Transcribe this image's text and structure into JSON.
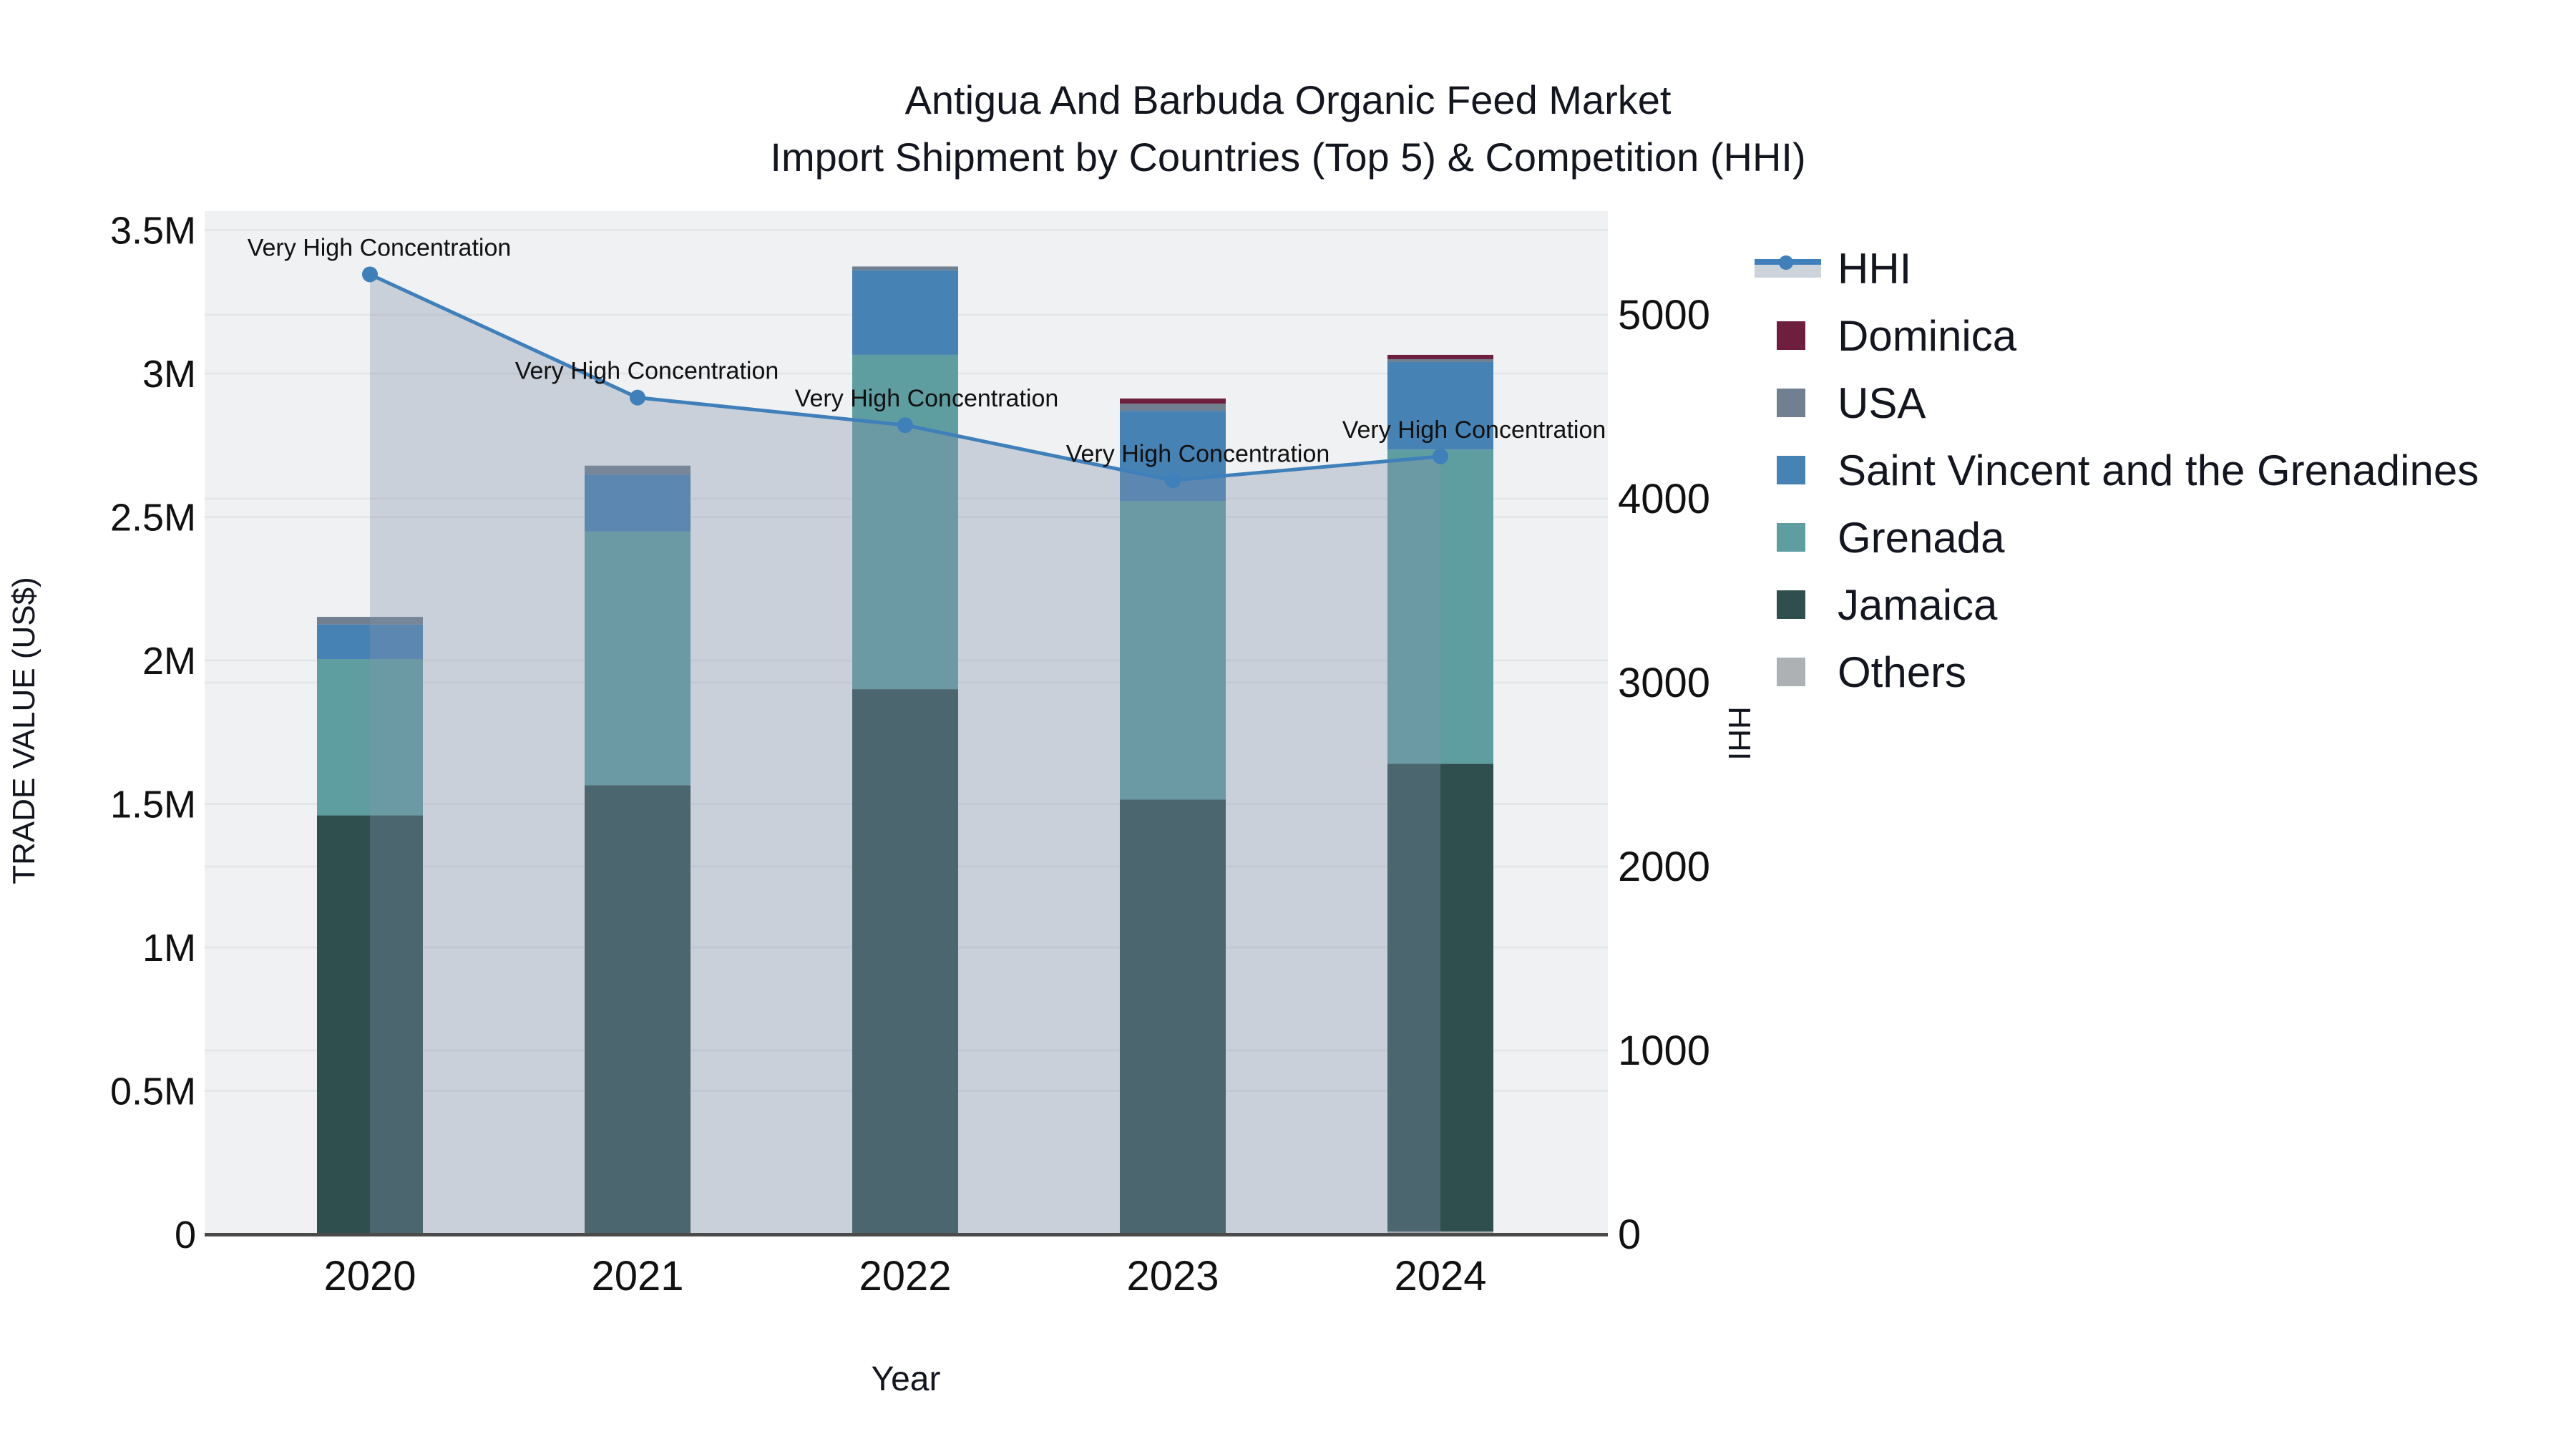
{
  "title": {
    "line1": "Antigua And Barbuda Organic Feed Market",
    "line2": "Import Shipment by Countries (Top 5) & Competition (HHI)"
  },
  "axes": {
    "x": {
      "title": "Year",
      "ticks": [
        "2020",
        "2021",
        "2022",
        "2023",
        "2024"
      ]
    },
    "y_left": {
      "title": "TRADE VALUE (US$)",
      "ticks": [
        {
          "label": "0",
          "value": 0
        },
        {
          "label": "0.5M",
          "value": 500000
        },
        {
          "label": "1M",
          "value": 1000000
        },
        {
          "label": "1.5M",
          "value": 1500000
        },
        {
          "label": "2M",
          "value": 2000000
        },
        {
          "label": "2.5M",
          "value": 2500000
        },
        {
          "label": "3M",
          "value": 3000000
        },
        {
          "label": "3.5M",
          "value": 3500000
        }
      ],
      "range": [
        0,
        3500000
      ]
    },
    "y_right": {
      "title": "HHI",
      "ticks": [
        {
          "label": "0",
          "value": 0
        },
        {
          "label": "1000",
          "value": 1000
        },
        {
          "label": "2000",
          "value": 2000
        },
        {
          "label": "3000",
          "value": 3000
        },
        {
          "label": "4000",
          "value": 4000
        },
        {
          "label": "5000",
          "value": 5000
        }
      ],
      "range": [
        0,
        5565
      ]
    }
  },
  "legend": {
    "items": [
      {
        "label": "HHI",
        "type": "line",
        "color": "#4080ba",
        "band_color": "#ccd3da"
      },
      {
        "label": "Dominica",
        "type": "swatch",
        "color": "#6e1f3e"
      },
      {
        "label": "USA",
        "type": "swatch",
        "color": "#708090"
      },
      {
        "label": "Saint Vincent and the Grenadines",
        "type": "swatch",
        "color": "#4682b4"
      },
      {
        "label": "Grenada",
        "type": "swatch",
        "color": "#5f9ea0"
      },
      {
        "label": "Jamaica",
        "type": "swatch",
        "color": "#2f4f4f"
      },
      {
        "label": "Others",
        "type": "swatch",
        "color": "#aeb1b4"
      }
    ]
  },
  "chart_data": {
    "type": "bar",
    "subtype": "stacked bars (left axis) + line with area fill (right axis)",
    "categories": [
      "2020",
      "2021",
      "2022",
      "2023",
      "2024"
    ],
    "bar_unit": "US$",
    "series": [
      {
        "name": "Others",
        "color": "#aeb1b4",
        "values": [
          0,
          0,
          0,
          0,
          10000
        ]
      },
      {
        "name": "Jamaica",
        "color": "#2f4f4f",
        "values": [
          1460000,
          1565000,
          1900000,
          1515000,
          1630000
        ]
      },
      {
        "name": "Grenada",
        "color": "#5f9ea0",
        "values": [
          545000,
          885000,
          1165000,
          1040000,
          1095000
        ]
      },
      {
        "name": "Saint Vincent and the Grenadines",
        "color": "#4682b4",
        "values": [
          120000,
          197000,
          295000,
          315000,
          305000
        ]
      },
      {
        "name": "USA",
        "color": "#708090",
        "values": [
          27000,
          32000,
          13000,
          25000,
          10000
        ]
      },
      {
        "name": "Dominica",
        "color": "#6e1f3e",
        "values": [
          0,
          0,
          0,
          18000,
          15000
        ]
      }
    ],
    "line_series": {
      "name": "HHI",
      "axis": "right",
      "color": "#4080ba",
      "fill_color": "rgba(131,147,171,0.35)",
      "values": [
        5220,
        4550,
        4400,
        4100,
        4230
      ],
      "annotations": [
        "Very High Concentration",
        "Very High Concentration",
        "Very High Concentration",
        "Very High Concentration",
        "Very High Concentration"
      ]
    },
    "xlabel": "Year",
    "ylabel_left": "TRADE VALUE (US$)",
    "ylabel_right": "HHI",
    "ylim_left": [
      0,
      3500000
    ],
    "ylim_right": [
      0,
      5565
    ],
    "grid": true,
    "legend_position": "right"
  },
  "colors": {
    "plot_bg": "#f0f1f2",
    "grid": "#e4e7ea",
    "axis_line": "#4a4a4a",
    "text": "#13161f",
    "hhi_line": "#4080ba",
    "hhi_area": "rgba(131,147,171,0.35)"
  }
}
